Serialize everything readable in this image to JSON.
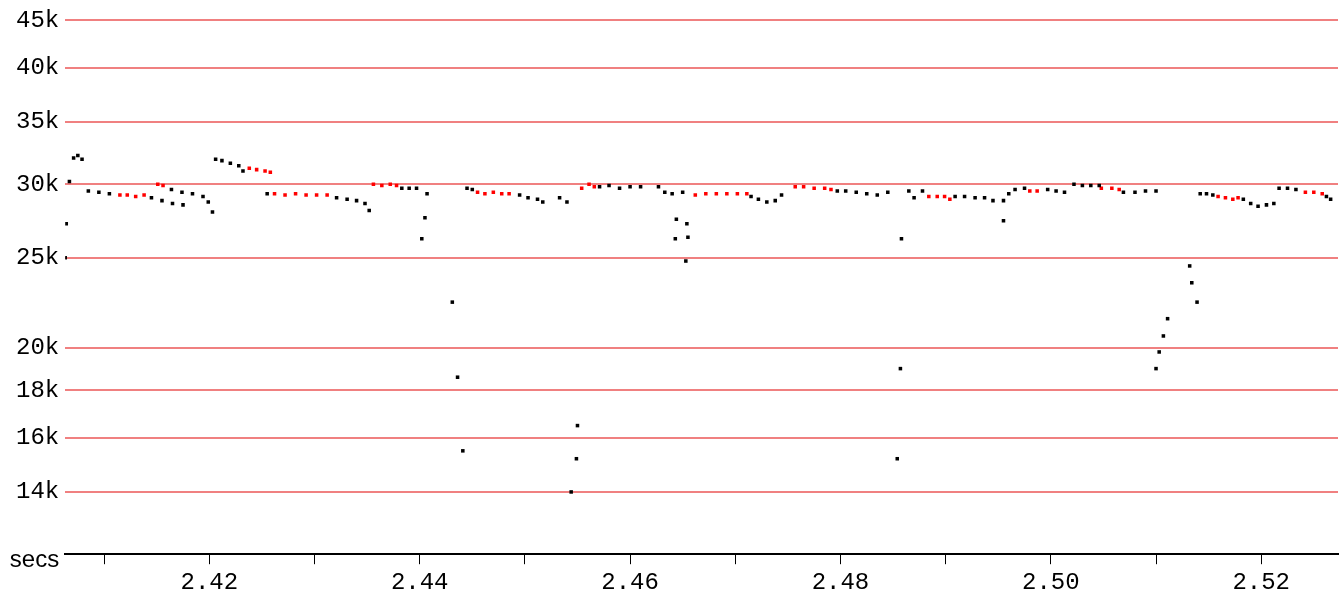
{
  "chart_data": {
    "type": "scatter",
    "xlabel": "secs",
    "log": "y",
    "grid": "y",
    "legend": false,
    "marker": "square",
    "xlim": [
      2.4063,
      2.5273
    ],
    "ylim": [
      12000,
      45000
    ],
    "xticks": [
      {
        "value": 2.41,
        "label": null
      },
      2.42,
      {
        "value": 2.43,
        "label": null
      },
      2.44,
      {
        "value": 2.45,
        "label": null
      },
      2.46,
      {
        "value": 2.47,
        "label": null
      },
      2.48,
      {
        "value": 2.49,
        "label": null
      },
      {
        "value": 2.5,
        "label": "2.50"
      },
      {
        "value": 2.51,
        "label": null
      },
      2.52
    ],
    "yticks": [
      {
        "value": 14000,
        "label": "14k"
      },
      {
        "value": 16000,
        "label": "16k"
      },
      {
        "value": 18000,
        "label": "18k"
      },
      {
        "value": 20000,
        "label": "20k"
      },
      {
        "value": 25000,
        "label": "25k"
      },
      {
        "value": 30000,
        "label": "30k"
      },
      {
        "value": 35000,
        "label": "35k"
      },
      {
        "value": 40000,
        "label": "40k"
      },
      {
        "value": 45000,
        "label": "45k"
      }
    ],
    "series": [
      {
        "color": "#000000",
        "x": [
          2.4063,
          2.4064,
          2.4067,
          2.4071,
          2.4075,
          2.4079,
          2.4085,
          2.4095,
          2.4105,
          2.4145,
          2.4155,
          2.4165,
          2.4175,
          2.4164,
          2.4174,
          2.4184,
          2.4194,
          2.4199,
          2.4203,
          2.4206,
          2.4212,
          2.422,
          2.4228,
          2.4232,
          2.4255,
          2.4321,
          2.4331,
          2.434,
          2.4348,
          2.4352,
          2.4383,
          2.439,
          2.4397,
          2.4407,
          2.4405,
          2.4402,
          2.4431,
          2.4436,
          2.4441,
          2.4445,
          2.445,
          2.4495,
          2.4503,
          2.4512,
          2.4517,
          2.4533,
          2.454,
          2.455,
          2.4549,
          2.4544,
          2.4571,
          2.458,
          2.459,
          2.46,
          2.461,
          2.4627,
          2.4633,
          2.464,
          2.465,
          2.4644,
          2.4643,
          2.4654,
          2.4655,
          2.4653,
          2.4715,
          2.4722,
          2.473,
          2.4738,
          2.4744,
          2.4797,
          2.4805,
          2.4815,
          2.4825,
          2.4835,
          2.4845,
          2.4865,
          2.487,
          2.4878,
          2.4858,
          2.4857,
          2.4854,
          2.4909,
          2.4918,
          2.4928,
          2.4937,
          2.4945,
          2.4955,
          2.4955,
          2.496,
          2.4966,
          2.4975,
          2.4997,
          2.5005,
          2.5013,
          2.5022,
          2.503,
          2.5038,
          2.5046,
          2.5069,
          2.508,
          2.509,
          2.51,
          2.51,
          2.5103,
          2.5107,
          2.5111,
          2.5132,
          2.5134,
          2.5139,
          2.5142,
          2.5148,
          2.5154,
          2.5183,
          2.519,
          2.5197,
          2.5205,
          2.5212,
          2.5217,
          2.5225,
          2.5233,
          2.5262,
          2.5266
        ],
        "values": [
          25000,
          27200,
          30200,
          32000,
          32200,
          31900,
          29500,
          29400,
          29300,
          29000,
          28800,
          28600,
          28500,
          29600,
          29400,
          29300,
          29100,
          28700,
          28000,
          31900,
          31800,
          31600,
          31400,
          31000,
          29300,
          29000,
          28900,
          28800,
          28600,
          28100,
          29700,
          29700,
          29700,
          29300,
          27600,
          26200,
          22400,
          18600,
          15500,
          29700,
          29600,
          29200,
          29000,
          28900,
          28700,
          29000,
          28700,
          16500,
          15200,
          14000,
          29800,
          29900,
          29700,
          29800,
          29800,
          29800,
          29400,
          29300,
          29400,
          27500,
          26200,
          27200,
          26300,
          24800,
          29100,
          28900,
          28700,
          28800,
          29200,
          29500,
          29500,
          29400,
          29300,
          29200,
          29400,
          29500,
          29000,
          29500,
          26200,
          19000,
          15200,
          29100,
          29100,
          29000,
          29000,
          28800,
          27400,
          28800,
          29300,
          29600,
          29700,
          29600,
          29500,
          29400,
          30000,
          29900,
          29900,
          29900,
          29400,
          29400,
          29500,
          29500,
          19000,
          19800,
          20600,
          21500,
          24500,
          23500,
          22400,
          29300,
          29300,
          29200,
          28900,
          28600,
          28400,
          28500,
          28600,
          29700,
          29700,
          29600,
          29100,
          28900
        ]
      },
      {
        "color": "#ff0000",
        "x": [
          2.4115,
          2.4122,
          2.413,
          2.4138,
          2.4151,
          2.4156,
          2.4238,
          2.4245,
          2.4253,
          2.4258,
          2.4262,
          2.4272,
          2.4282,
          2.4292,
          2.4302,
          2.4312,
          2.4356,
          2.4364,
          2.4372,
          2.4378,
          2.4455,
          2.4462,
          2.447,
          2.4478,
          2.4485,
          2.4554,
          2.4561,
          2.4566,
          2.4662,
          2.4672,
          2.4682,
          2.4692,
          2.4702,
          2.4711,
          2.4757,
          2.4765,
          2.4775,
          2.4785,
          2.4791,
          2.4884,
          2.4892,
          2.4899,
          2.4904,
          2.498,
          2.4987,
          2.5048,
          2.5058,
          2.5065,
          2.5159,
          2.5166,
          2.5173,
          2.5178,
          2.5242,
          2.525,
          2.5258
        ],
        "values": [
          29200,
          29200,
          29100,
          29200,
          30000,
          29900,
          31200,
          31100,
          31000,
          30900,
          29300,
          29200,
          29300,
          29200,
          29200,
          29200,
          30000,
          29900,
          30000,
          29900,
          29400,
          29300,
          29400,
          29300,
          29300,
          29700,
          30000,
          29800,
          29200,
          29300,
          29300,
          29300,
          29300,
          29300,
          29800,
          29800,
          29700,
          29700,
          29600,
          29100,
          29100,
          29100,
          28900,
          29500,
          29500,
          29700,
          29700,
          29600,
          29100,
          29000,
          28900,
          29000,
          29400,
          29400,
          29300
        ]
      }
    ]
  }
}
